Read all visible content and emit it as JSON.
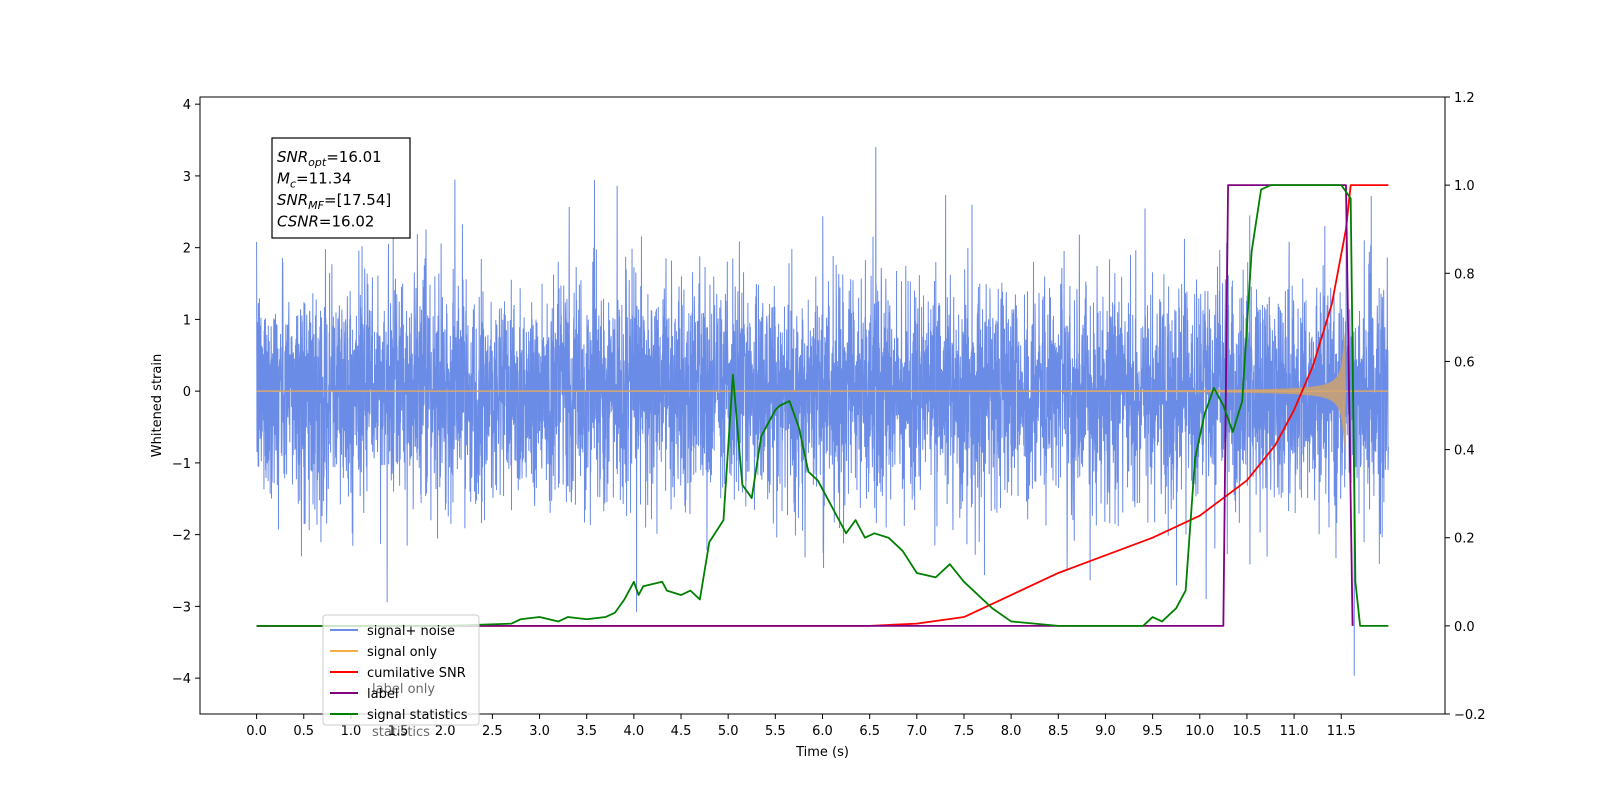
{
  "chart_data": {
    "type": "line",
    "xlabel": "Time (s)",
    "ylabel": "Whitened strain",
    "xlim": [
      -0.6,
      12.6
    ],
    "ylim": [
      -4.5,
      4.1
    ],
    "y2lim": [
      -0.2,
      1.2
    ],
    "x_ticks": [
      "0.0",
      "0.5",
      "1.0",
      "1.5",
      "2.0",
      "2.5",
      "3.0",
      "3.5",
      "4.0",
      "4.5",
      "5.0",
      "5.5",
      "6.0",
      "6.5",
      "7.0",
      "7.5",
      "8.0",
      "8.5",
      "9.0",
      "9.5",
      "10.0",
      "10.5",
      "11.0",
      "11.5"
    ],
    "y_ticks": [
      "4",
      "3",
      "2",
      "1",
      "0",
      "−1",
      "−2",
      "−3",
      "−4"
    ],
    "y2_ticks": [
      "1.2",
      "1.0",
      "0.8",
      "0.6",
      "0.4",
      "0.2",
      "0.0",
      "−0.2"
    ],
    "grid": false,
    "legend_position": "lower-left",
    "annotations": [
      {
        "sym": "SNR",
        "sub": "opt",
        "val": "=16.01"
      },
      {
        "sym": "M",
        "sub": "c",
        "val": "=11.34"
      },
      {
        "sym": "SNR",
        "sub": "MF",
        "val": "=[17.54]"
      },
      {
        "sym": "CSNR",
        "sub": "",
        "val": "=16.02"
      }
    ],
    "series": [
      {
        "name": "signal+ noise",
        "color": "#6a8be6",
        "axis": "left",
        "kind": "noise",
        "sigma": 0.75,
        "duration": 12.0
      },
      {
        "name": "signal only",
        "color": "#f5b041",
        "axis": "left",
        "kind": "chirp",
        "t_merge": 11.55,
        "amplitude_max": 2.5
      },
      {
        "name": "cumilative SNR",
        "color": "#ff0000",
        "axis": "right",
        "x": [
          0.0,
          5.0,
          6.5,
          7.0,
          7.5,
          8.0,
          8.5,
          9.0,
          9.5,
          10.0,
          10.5,
          10.8,
          11.0,
          11.2,
          11.4,
          11.55,
          11.6,
          12.0
        ],
        "y": [
          0.0,
          0.0,
          0.0,
          0.005,
          0.02,
          0.07,
          0.12,
          0.16,
          0.2,
          0.25,
          0.33,
          0.41,
          0.49,
          0.59,
          0.73,
          0.9,
          1.0,
          1.0
        ]
      },
      {
        "name": "label",
        "color": "#800080",
        "axis": "right",
        "x": [
          0.0,
          10.25,
          10.3,
          11.55,
          11.62
        ],
        "y": [
          0.0,
          0.0,
          1.0,
          1.0,
          0.0
        ]
      },
      {
        "name": "signal statistics",
        "color": "#008000",
        "axis": "right",
        "x": [
          0.0,
          2.0,
          2.7,
          2.8,
          3.0,
          3.2,
          3.3,
          3.5,
          3.7,
          3.8,
          3.9,
          4.0,
          4.05,
          4.1,
          4.3,
          4.35,
          4.5,
          4.6,
          4.7,
          4.8,
          4.95,
          5.05,
          5.15,
          5.25,
          5.35,
          5.5,
          5.55,
          5.65,
          5.75,
          5.85,
          5.95,
          6.1,
          6.25,
          6.35,
          6.45,
          6.55,
          6.7,
          6.85,
          7.0,
          7.2,
          7.35,
          7.5,
          7.8,
          8.0,
          8.5,
          9.0,
          9.4,
          9.5,
          9.6,
          9.75,
          9.85,
          9.95,
          10.05,
          10.15,
          10.25,
          10.35,
          10.45,
          10.55,
          10.65,
          10.75,
          11.5,
          11.6,
          11.65,
          11.7,
          12.0
        ],
        "y": [
          0.0,
          0.0,
          0.005,
          0.015,
          0.02,
          0.01,
          0.02,
          0.015,
          0.02,
          0.03,
          0.06,
          0.1,
          0.07,
          0.09,
          0.1,
          0.08,
          0.07,
          0.08,
          0.06,
          0.19,
          0.24,
          0.57,
          0.32,
          0.29,
          0.43,
          0.49,
          0.5,
          0.51,
          0.45,
          0.35,
          0.33,
          0.27,
          0.21,
          0.24,
          0.2,
          0.21,
          0.2,
          0.17,
          0.12,
          0.11,
          0.14,
          0.1,
          0.04,
          0.01,
          0.0,
          0.0,
          0.0,
          0.02,
          0.01,
          0.04,
          0.08,
          0.38,
          0.48,
          0.54,
          0.5,
          0.44,
          0.51,
          0.85,
          0.99,
          1.0,
          1.0,
          0.97,
          0.1,
          0.0,
          0.0
        ]
      }
    ],
    "legend_entries": [
      "signal+ noise",
      "signal only",
      "cumilative SNR",
      "label",
      "signal statistics"
    ],
    "legend_ghost_text": [
      "label only",
      "statistics"
    ]
  }
}
